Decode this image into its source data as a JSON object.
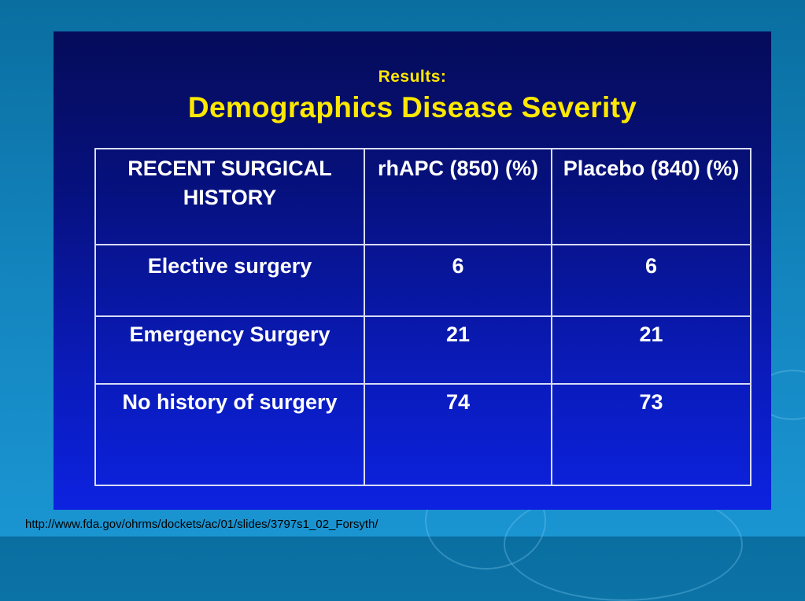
{
  "slide": {
    "subtitle": "Results:",
    "title": "Demographics Disease Severity"
  },
  "table": {
    "header": [
      "RECENT SURGICAL HISTORY",
      "rhAPC (850) (%)",
      "Placebo (840) (%)"
    ],
    "rows": [
      [
        "Elective surgery",
        "6",
        "6"
      ],
      [
        "Emergency Surgery",
        "21",
        "21"
      ],
      [
        "No history of surgery",
        "74",
        "73"
      ]
    ]
  },
  "footer": {
    "source_url": "http://www.fda.gov/ohrms/dockets/ac/01/slides/3797s1_02_Forsyth/"
  }
}
